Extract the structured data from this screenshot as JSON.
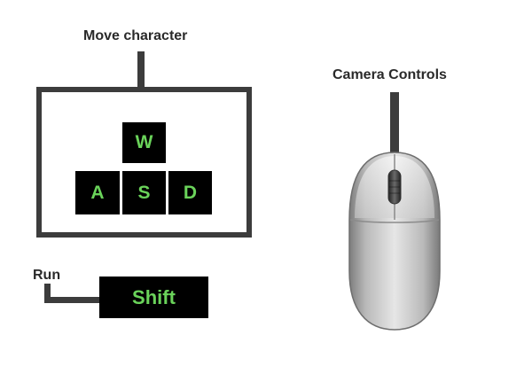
{
  "labels": {
    "move_character": "Move character",
    "camera_controls": "Camera Controls",
    "run": "Run"
  },
  "keys": {
    "w": "W",
    "a": "A",
    "s": "S",
    "d": "D",
    "shift": "Shift"
  },
  "colors": {
    "key_background": "#000000",
    "key_text": "#6ad35a",
    "line": "#3c3c3c",
    "label_text": "#2a2a2a"
  }
}
